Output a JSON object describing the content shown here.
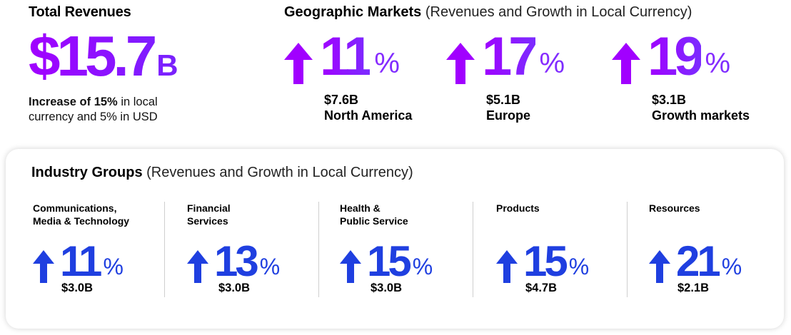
{
  "total_revenues": {
    "title": "Total Revenues",
    "amount": "$15.7",
    "unit": "B",
    "desc_bold": "Increase of 15%",
    "desc_rest": " in local currency and 5% in USD"
  },
  "geographic": {
    "title": "Geographic Markets",
    "subtitle": " (Revenues and Growth in Local Currency)",
    "items": [
      {
        "growth": "11",
        "pct": "%",
        "amount": "$7.6B",
        "region": "North America"
      },
      {
        "growth": "17",
        "pct": "%",
        "amount": "$5.1B",
        "region": "Europe"
      },
      {
        "growth": "19",
        "pct": "%",
        "amount": "$3.1B",
        "region": "Growth markets"
      }
    ],
    "arrow_color": "#a100ff"
  },
  "industry": {
    "title": "Industry Groups",
    "subtitle": " (Revenues and Growth in Local Currency)",
    "items": [
      {
        "label_line1": "Communications,",
        "label_line2": "Media & Technology",
        "growth": "11",
        "pct": "%",
        "amount": "$3.0B"
      },
      {
        "label_line1": "Financial",
        "label_line2": "Services",
        "growth": "13",
        "pct": "%",
        "amount": "$3.0B"
      },
      {
        "label_line1": "Health &",
        "label_line2": "Public Service",
        "growth": "15",
        "pct": "%",
        "amount": "$3.0B"
      },
      {
        "label_line1": "Products",
        "label_line2": "",
        "growth": "15",
        "pct": "%",
        "amount": "$4.7B"
      },
      {
        "label_line1": "Resources",
        "label_line2": "",
        "growth": "21",
        "pct": "%",
        "amount": "$2.1B"
      }
    ],
    "arrow_color": "#1f3fe0"
  }
}
